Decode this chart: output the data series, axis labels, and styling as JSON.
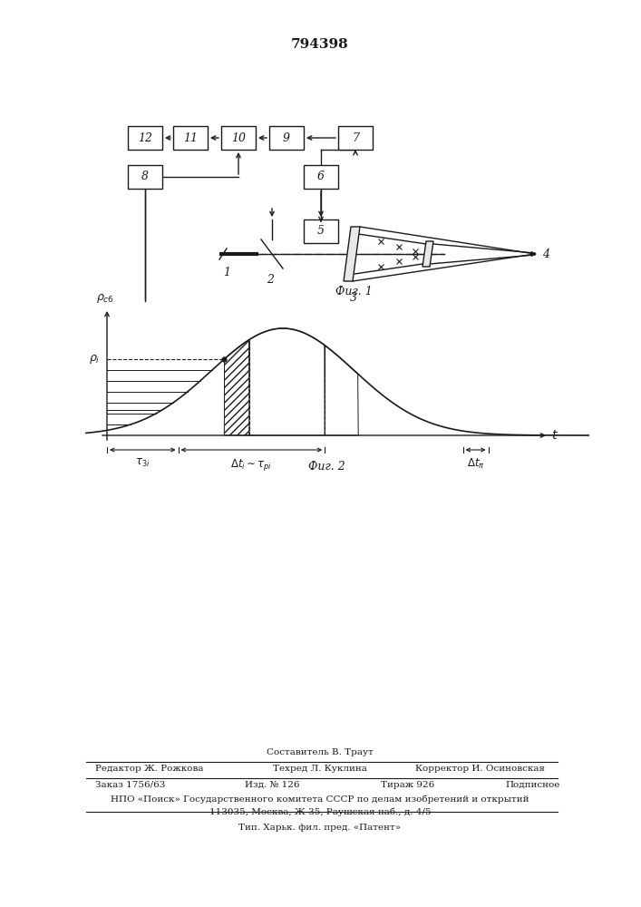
{
  "patent_number": "794398",
  "fig1_caption": "Фиг. 1",
  "fig2_caption": "Фиг. 2",
  "line_color": "#1a1a1a",
  "bg_color": "#ffffff",
  "boxes_row1": [
    "12",
    "11",
    "10",
    "9",
    "7"
  ],
  "box8": "8",
  "box6": "6",
  "box5": "5",
  "footer_author": "Составитель В. Траут",
  "footer_editor": "Редактор Ж. Рожкова",
  "footer_tech": "Техред Л. Куклина",
  "footer_corr": "Корректор И. Осиновская",
  "footer_order": "Заказ 1756/63",
  "footer_izd": "Изд. № 126",
  "footer_tirazh": "Тираж 926",
  "footer_podp": "Подписное",
  "footer_npo": "НПО «Поиск» Государственного комитета СССР по делам изобретений и открытий",
  "footer_addr": "113035, Москва, Ж-35, Раушская наб., д. 4/5",
  "footer_tip": "Тип. Харьк. фил. пред. «Патент»"
}
